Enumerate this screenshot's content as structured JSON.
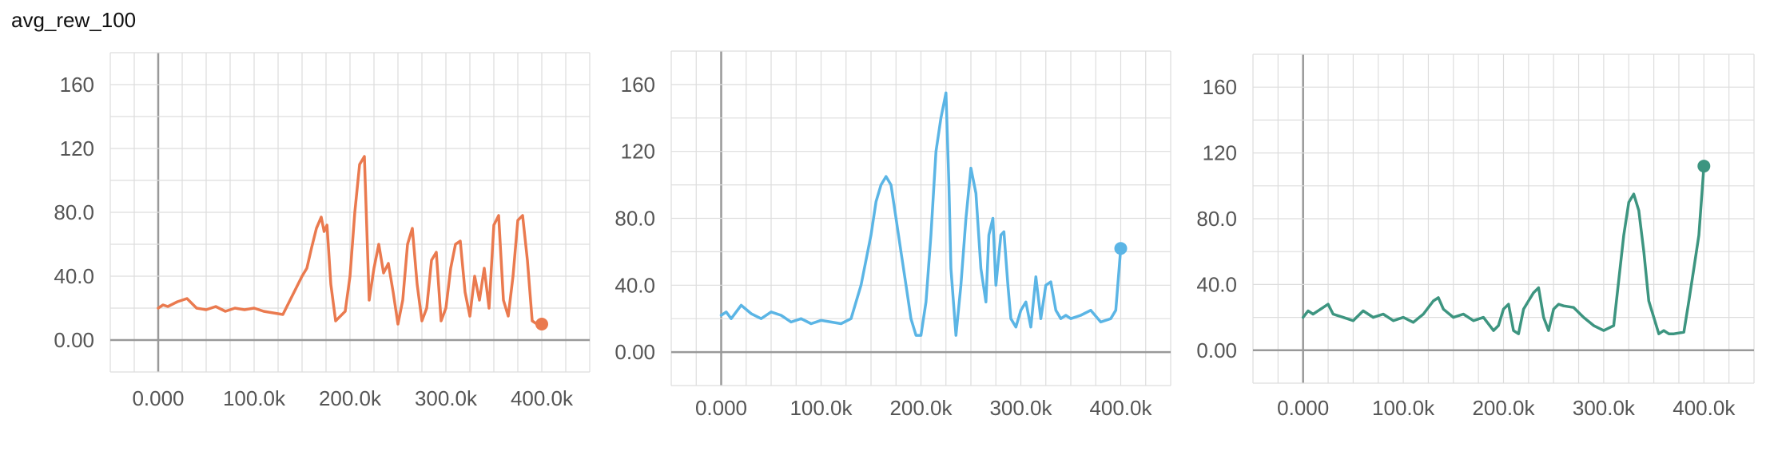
{
  "page": {
    "title": "avg_rew_100"
  },
  "chart_data": [
    {
      "type": "line",
      "title": "",
      "xlabel": "",
      "ylabel": "",
      "grid": true,
      "xlim": [
        -50000,
        450000
      ],
      "ylim": [
        -20,
        180
      ],
      "xticks": [
        0,
        100000,
        200000,
        300000,
        400000
      ],
      "xtick_labels": [
        "0.000",
        "100.0k",
        "200.0k",
        "300.0k",
        "400.0k"
      ],
      "yticks": [
        0,
        40,
        80,
        120,
        160
      ],
      "ytick_labels": [
        "0.00",
        "40.0",
        "80.0",
        "120",
        "160"
      ],
      "color": "#ea7a4f",
      "series": [
        {
          "x": [
            0,
            5000,
            10000,
            20000,
            30000,
            35000,
            40000,
            50000,
            60000,
            70000,
            80000,
            90000,
            100000,
            110000,
            120000,
            130000,
            140000,
            150000,
            155000,
            160000,
            165000,
            170000,
            173000,
            176000,
            180000,
            185000,
            190000,
            195000,
            200000,
            205000,
            210000,
            215000,
            220000,
            225000,
            230000,
            235000,
            240000,
            245000,
            250000,
            255000,
            260000,
            265000,
            270000,
            275000,
            280000,
            285000,
            290000,
            295000,
            300000,
            305000,
            310000,
            315000,
            320000,
            325000,
            330000,
            335000,
            340000,
            345000,
            350000,
            355000,
            360000,
            365000,
            370000,
            375000,
            380000,
            385000,
            390000,
            395000,
            400000
          ],
          "y": [
            20,
            22,
            21,
            24,
            26,
            23,
            20,
            19,
            21,
            18,
            20,
            19,
            20,
            18,
            17,
            16,
            28,
            40,
            45,
            58,
            70,
            77,
            68,
            72,
            35,
            12,
            15,
            18,
            40,
            80,
            110,
            115,
            25,
            45,
            60,
            42,
            48,
            30,
            10,
            25,
            60,
            70,
            35,
            12,
            20,
            50,
            55,
            12,
            20,
            45,
            60,
            62,
            30,
            15,
            40,
            25,
            45,
            20,
            72,
            78,
            25,
            15,
            40,
            75,
            78,
            50,
            12,
            10,
            10
          ]
        }
      ]
    },
    {
      "type": "line",
      "title": "",
      "xlabel": "",
      "ylabel": "",
      "grid": true,
      "xlim": [
        -50000,
        450000
      ],
      "ylim": [
        -20,
        180
      ],
      "xticks": [
        0,
        100000,
        200000,
        300000,
        400000
      ],
      "xtick_labels": [
        "0.000",
        "100.0k",
        "200.0k",
        "300.0k",
        "400.0k"
      ],
      "yticks": [
        0,
        40,
        80,
        120,
        160
      ],
      "ytick_labels": [
        "0.00",
        "40.0",
        "80.0",
        "120",
        "160"
      ],
      "color": "#5bb5e5",
      "series": [
        {
          "x": [
            0,
            5000,
            10000,
            20000,
            30000,
            40000,
            50000,
            60000,
            70000,
            80000,
            90000,
            100000,
            110000,
            120000,
            130000,
            140000,
            150000,
            155000,
            160000,
            165000,
            170000,
            175000,
            180000,
            185000,
            190000,
            195000,
            200000,
            205000,
            210000,
            215000,
            220000,
            225000,
            228000,
            230000,
            235000,
            240000,
            245000,
            250000,
            255000,
            260000,
            265000,
            268000,
            272000,
            275000,
            280000,
            283000,
            287000,
            290000,
            295000,
            300000,
            305000,
            310000,
            315000,
            320000,
            325000,
            330000,
            335000,
            340000,
            345000,
            350000,
            360000,
            370000,
            380000,
            390000,
            395000,
            400000
          ],
          "y": [
            22,
            24,
            20,
            28,
            23,
            20,
            24,
            22,
            18,
            20,
            17,
            19,
            18,
            17,
            20,
            40,
            70,
            90,
            100,
            105,
            100,
            80,
            60,
            40,
            20,
            10,
            10,
            30,
            70,
            120,
            140,
            155,
            100,
            50,
            10,
            40,
            80,
            110,
            95,
            50,
            30,
            70,
            80,
            40,
            70,
            72,
            40,
            20,
            15,
            25,
            30,
            15,
            45,
            20,
            40,
            42,
            25,
            20,
            22,
            20,
            22,
            25,
            18,
            20,
            25,
            62
          ]
        }
      ]
    },
    {
      "type": "line",
      "title": "",
      "xlabel": "",
      "ylabel": "",
      "grid": true,
      "xlim": [
        -50000,
        450000
      ],
      "ylim": [
        -20,
        180
      ],
      "xticks": [
        0,
        100000,
        200000,
        300000,
        400000
      ],
      "xtick_labels": [
        "0.000",
        "100.0k",
        "200.0k",
        "300.0k",
        "400.0k"
      ],
      "yticks": [
        0,
        40,
        80,
        120,
        160
      ],
      "ytick_labels": [
        "0.00",
        "40.0",
        "80.0",
        "120",
        "160"
      ],
      "color": "#3d9580",
      "series": [
        {
          "x": [
            0,
            5000,
            10000,
            20000,
            25000,
            30000,
            40000,
            50000,
            60000,
            70000,
            80000,
            90000,
            100000,
            110000,
            120000,
            130000,
            135000,
            140000,
            150000,
            160000,
            170000,
            180000,
            190000,
            195000,
            200000,
            205000,
            210000,
            215000,
            220000,
            225000,
            230000,
            235000,
            240000,
            245000,
            250000,
            255000,
            260000,
            270000,
            280000,
            290000,
            300000,
            310000,
            320000,
            325000,
            330000,
            335000,
            340000,
            345000,
            350000,
            355000,
            360000,
            365000,
            370000,
            380000,
            385000,
            390000,
            395000,
            400000
          ],
          "y": [
            20,
            24,
            22,
            26,
            28,
            22,
            20,
            18,
            24,
            20,
            22,
            18,
            20,
            17,
            22,
            30,
            32,
            25,
            20,
            22,
            18,
            20,
            12,
            15,
            25,
            28,
            12,
            10,
            25,
            30,
            35,
            38,
            20,
            12,
            25,
            28,
            27,
            26,
            20,
            15,
            12,
            15,
            70,
            90,
            95,
            85,
            60,
            30,
            20,
            10,
            12,
            10,
            10,
            11,
            30,
            50,
            70,
            112
          ]
        }
      ]
    }
  ]
}
